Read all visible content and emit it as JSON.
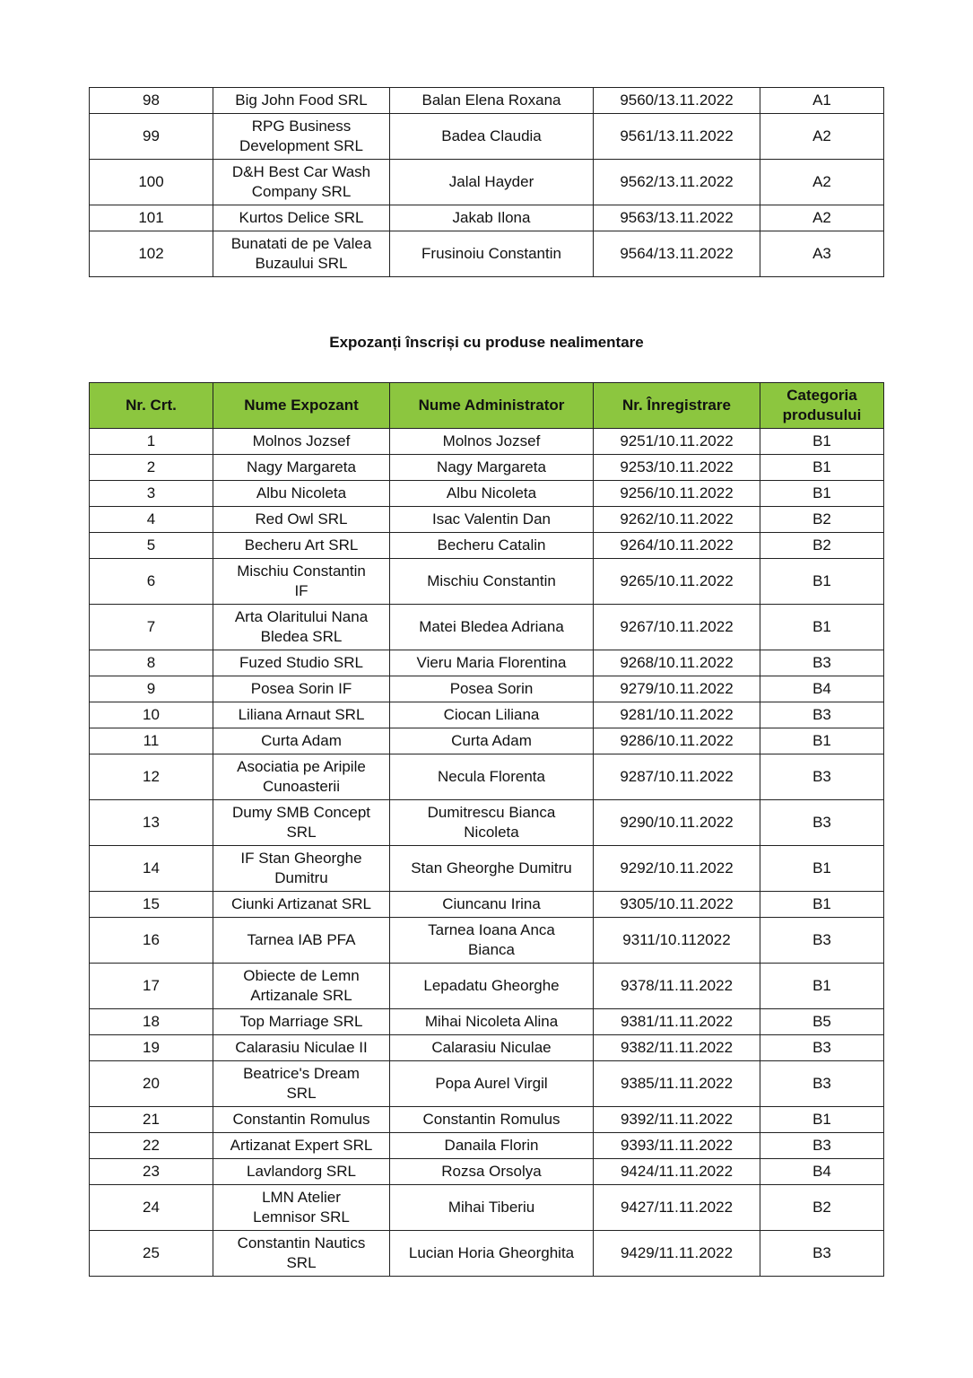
{
  "table_food_continued": {
    "rows": [
      [
        "98",
        "Big John Food SRL",
        "Balan Elena Roxana",
        "9560/13.11.2022",
        "A1"
      ],
      [
        "99",
        "RPG Business\nDevelopment SRL",
        "Badea Claudia",
        "9561/13.11.2022",
        "A2"
      ],
      [
        "100",
        "D&H Best Car Wash\nCompany SRL",
        "Jalal Hayder",
        "9562/13.11.2022",
        "A2"
      ],
      [
        "101",
        "Kurtos Delice SRL",
        "Jakab Ilona",
        "9563/13.11.2022",
        "A2"
      ],
      [
        "102",
        "Bunatati de pe Valea\nBuzaului SRL",
        "Frusinoiu Constantin",
        "9564/13.11.2022",
        "A3"
      ]
    ]
  },
  "section_title": "Expozanți înscriși cu produse nealimentare",
  "table_nonfood": {
    "header_color": "#8cc63f",
    "headers": [
      "Nr. Crt.",
      "Nume Expozant",
      "Nume Administrator",
      "Nr. Înregistrare",
      "Categoria\nprodusului"
    ],
    "rows": [
      [
        "1",
        "Molnos Jozsef",
        "Molnos Jozsef",
        "9251/10.11.2022",
        "B1"
      ],
      [
        "2",
        "Nagy Margareta",
        "Nagy Margareta",
        "9253/10.11.2022",
        "B1"
      ],
      [
        "3",
        "Albu Nicoleta",
        "Albu Nicoleta",
        "9256/10.11.2022",
        "B1"
      ],
      [
        "4",
        "Red Owl SRL",
        "Isac Valentin Dan",
        "9262/10.11.2022",
        "B2"
      ],
      [
        "5",
        "Becheru Art SRL",
        "Becheru Catalin",
        "9264/10.11.2022",
        "B2"
      ],
      [
        "6",
        "Mischiu Constantin\nIF",
        "Mischiu Constantin",
        "9265/10.11.2022",
        "B1"
      ],
      [
        "7",
        "Arta Olaritului Nana\nBledea SRL",
        "Matei Bledea Adriana",
        "9267/10.11.2022",
        "B1"
      ],
      [
        "8",
        "Fuzed Studio SRL",
        "Vieru Maria Florentina",
        "9268/10.11.2022",
        "B3"
      ],
      [
        "9",
        "Posea Sorin IF",
        "Posea Sorin",
        "9279/10.11.2022",
        "B4"
      ],
      [
        "10",
        "Liliana Arnaut SRL",
        "Ciocan Liliana",
        "9281/10.11.2022",
        "B3"
      ],
      [
        "11",
        "Curta Adam",
        "Curta Adam",
        "9286/10.11.2022",
        "B1"
      ],
      [
        "12",
        "Asociatia pe Aripile\nCunoasterii",
        "Necula Florenta",
        "9287/10.11.2022",
        "B3"
      ],
      [
        "13",
        "Dumy SMB Concept\nSRL",
        "Dumitrescu Bianca\nNicoleta",
        "9290/10.11.2022",
        "B3"
      ],
      [
        "14",
        "IF Stan Gheorghe\nDumitru",
        "Stan Gheorghe Dumitru",
        "9292/10.11.2022",
        "B1"
      ],
      [
        "15",
        "Ciunki Artizanat SRL",
        "Ciuncanu Irina",
        "9305/10.11.2022",
        "B1"
      ],
      [
        "16",
        "Tarnea IAB PFA",
        "Tarnea Ioana Anca\nBianca",
        "9311/10.112022",
        "B3"
      ],
      [
        "17",
        "Obiecte de Lemn\nArtizanale SRL",
        "Lepadatu Gheorghe",
        "9378/11.11.2022",
        "B1"
      ],
      [
        "18",
        "Top Marriage SRL",
        "Mihai Nicoleta Alina",
        "9381/11.11.2022",
        "B5"
      ],
      [
        "19",
        "Calarasiu Niculae II",
        "Calarasiu Niculae",
        "9382/11.11.2022",
        "B3"
      ],
      [
        "20",
        "Beatrice's Dream\nSRL",
        "Popa Aurel Virgil",
        "9385/11.11.2022",
        "B3"
      ],
      [
        "21",
        "Constantin Romulus",
        "Constantin Romulus",
        "9392/11.11.2022",
        "B1"
      ],
      [
        "22",
        "Artizanat Expert SRL",
        "Danaila Florin",
        "9393/11.11.2022",
        "B3"
      ],
      [
        "23",
        "Lavlandorg SRL",
        "Rozsa Orsolya",
        "9424/11.11.2022",
        "B4"
      ],
      [
        "24",
        "LMN Atelier\nLemnisor SRL",
        "Mihai Tiberiu",
        "9427/11.11.2022",
        "B2"
      ],
      [
        "25",
        "Constantin Nautics\nSRL",
        "Lucian Horia Gheorghita",
        "9429/11.11.2022",
        "B3"
      ]
    ]
  }
}
